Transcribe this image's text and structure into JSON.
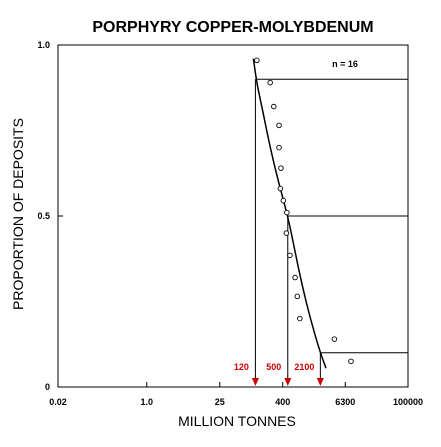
{
  "chart_data": {
    "type": "scatter",
    "title": "PORPHYRY COPPER-MOLYBDENUM",
    "xlabel": "MILLION TONNES",
    "ylabel": "PROPORTION OF DEPOSITS",
    "x_scale": "log",
    "xlim": [
      0.02,
      100000
    ],
    "ylim": [
      0,
      1
    ],
    "x_ticks": [
      {
        "value": 0.02,
        "label": "0.02"
      },
      {
        "value": 1,
        "label": "1.0"
      },
      {
        "value": 25,
        "label": "25"
      },
      {
        "value": 400,
        "label": "400"
      },
      {
        "value": 6300,
        "label": "6300"
      },
      {
        "value": 100000,
        "label": "100000"
      }
    ],
    "y_ticks": [
      {
        "value": 0,
        "label": "0"
      },
      {
        "value": 0.5,
        "label": "0.5"
      },
      {
        "value": 1,
        "label": "1.0"
      }
    ],
    "annotation": "n = 16",
    "points": [
      {
        "x": 128,
        "y": 0.955
      },
      {
        "x": 230,
        "y": 0.89
      },
      {
        "x": 270,
        "y": 0.82
      },
      {
        "x": 340,
        "y": 0.765
      },
      {
        "x": 340,
        "y": 0.7
      },
      {
        "x": 370,
        "y": 0.64
      },
      {
        "x": 360,
        "y": 0.58
      },
      {
        "x": 410,
        "y": 0.545
      },
      {
        "x": 480,
        "y": 0.51
      },
      {
        "x": 470,
        "y": 0.45
      },
      {
        "x": 550,
        "y": 0.385
      },
      {
        "x": 690,
        "y": 0.32
      },
      {
        "x": 760,
        "y": 0.265
      },
      {
        "x": 850,
        "y": 0.2
      },
      {
        "x": 3900,
        "y": 0.14
      },
      {
        "x": 8100,
        "y": 0.075
      }
    ],
    "fitted_curve": [
      {
        "x": 110,
        "y": 0.96
      },
      {
        "x": 130,
        "y": 0.88
      },
      {
        "x": 170,
        "y": 0.8
      },
      {
        "x": 230,
        "y": 0.7
      },
      {
        "x": 330,
        "y": 0.6
      },
      {
        "x": 500,
        "y": 0.5
      },
      {
        "x": 680,
        "y": 0.4
      },
      {
        "x": 930,
        "y": 0.3
      },
      {
        "x": 1350,
        "y": 0.2
      },
      {
        "x": 2100,
        "y": 0.1
      },
      {
        "x": 2700,
        "y": 0.055
      }
    ],
    "percentiles": [
      {
        "proportion": 0.9,
        "tonnage": 120,
        "label": "120"
      },
      {
        "proportion": 0.5,
        "tonnage": 500,
        "label": "500"
      },
      {
        "proportion": 0.1,
        "tonnage": 2100,
        "label": "2100"
      }
    ],
    "colors": {
      "axis": "#000000",
      "points": "#000000",
      "curve": "#000000",
      "percentile_arrows": "#cc0000"
    },
    "grid": false
  }
}
